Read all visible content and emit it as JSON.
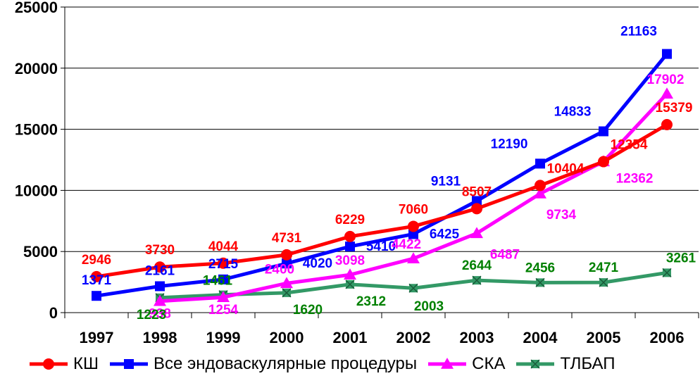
{
  "chart_data": {
    "type": "line",
    "title": "",
    "xlabel": "",
    "ylabel": "",
    "x": [
      "1997",
      "1998",
      "1999",
      "2000",
      "2001",
      "2002",
      "2003",
      "2004",
      "2005",
      "2006"
    ],
    "ylim": [
      0,
      25000
    ],
    "yticks": [
      "0",
      "5000",
      "10000",
      "15000",
      "20000",
      "25000"
    ],
    "grid": true,
    "legend_position": "bottom",
    "series": [
      {
        "name": "КШ",
        "color": "#ff0000",
        "marker": "circle",
        "values": [
          2946,
          3730,
          4044,
          4731,
          6229,
          7060,
          8507,
          10404,
          12354,
          15379
        ],
        "labels": [
          "2946",
          "3730",
          "4044",
          "4731",
          "6229",
          "7060",
          "8507",
          "10404",
          "12354",
          "15379"
        ]
      },
      {
        "name": "Все эндоваскулярные процедуры",
        "color": "#0000ff",
        "marker": "square",
        "values": [
          1371,
          2161,
          2715,
          4020,
          5410,
          6425,
          9131,
          12190,
          14833,
          21163
        ],
        "labels": [
          "1371",
          "2161",
          "2715",
          "4020",
          "5410",
          "6425",
          "9131",
          "12190",
          "14833",
          "21163"
        ]
      },
      {
        "name": "СКА",
        "color": "#ff00ff",
        "marker": "triangle",
        "values": [
          null,
          938,
          1254,
          2400,
          3098,
          4422,
          6487,
          9734,
          12362,
          17902
        ],
        "labels": [
          "",
          "938",
          "1254",
          "2400",
          "3098",
          "4422",
          "6487",
          "9734",
          "12362",
          "17902"
        ]
      },
      {
        "name": "ТЛБАП",
        "color": "#339966",
        "label_color": "#008000",
        "marker": "xsquare",
        "values": [
          null,
          1223,
          1461,
          1620,
          2312,
          2003,
          2644,
          2456,
          2471,
          3261
        ],
        "labels": [
          "",
          "1223",
          "1461",
          "1620",
          "2312",
          "2003",
          "2644",
          "2456",
          "2471",
          "3261"
        ]
      }
    ]
  }
}
